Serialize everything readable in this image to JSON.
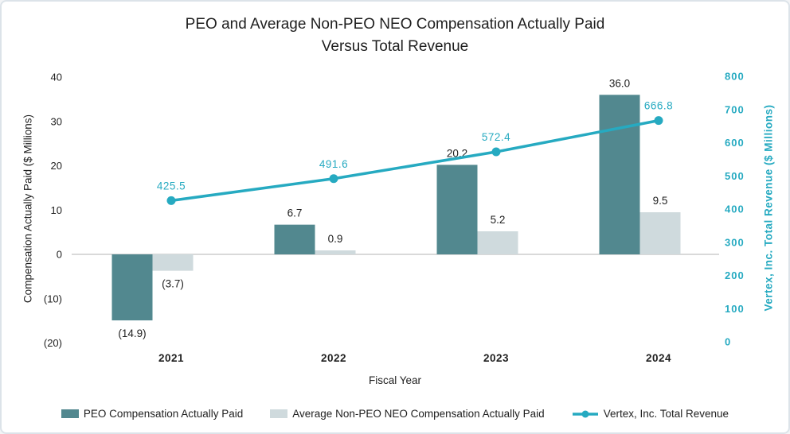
{
  "title": {
    "line1": "PEO and Average Non-PEO NEO Compensation Actually Paid",
    "line2": "Versus Total Revenue"
  },
  "chart_data": {
    "type": "combo-bar-line",
    "categories": [
      "2021",
      "2022",
      "2023",
      "2024"
    ],
    "series": [
      {
        "name": "PEO Compensation Actually Paid",
        "type": "bar",
        "axis": "left",
        "color": "#52888f",
        "values": [
          -14.9,
          6.7,
          20.2,
          36.0
        ],
        "labels": [
          "(14.9)",
          "6.7",
          "20.2",
          "36.0"
        ]
      },
      {
        "name": "Average Non-PEO NEO Compensation Actually Paid",
        "type": "bar",
        "axis": "left",
        "color": "#cfdadd",
        "values": [
          -3.7,
          0.9,
          5.2,
          9.5
        ],
        "labels": [
          "(3.7)",
          "0.9",
          "5.2",
          "9.5"
        ]
      },
      {
        "name": "Vertex, Inc. Total Revenue",
        "type": "line",
        "axis": "right",
        "color": "#26aac1",
        "values": [
          425.5,
          491.6,
          572.4,
          666.8
        ],
        "labels": [
          "425.5",
          "491.6",
          "572.4",
          "666.8"
        ]
      }
    ],
    "left_axis": {
      "title": "Compensation Actually Paid ($ Millions)",
      "min": -20,
      "max": 40,
      "tick_step": 10,
      "ticks": [
        {
          "v": 40,
          "label": "40"
        },
        {
          "v": 30,
          "label": "30"
        },
        {
          "v": 20,
          "label": "20"
        },
        {
          "v": 10,
          "label": "10"
        },
        {
          "v": 0,
          "label": "0"
        },
        {
          "v": -10,
          "label": "(10)"
        },
        {
          "v": -20,
          "label": "(20)"
        }
      ]
    },
    "right_axis": {
      "title": "Vertex, Inc. Total Revenue ($ Millions)",
      "min": 0,
      "max": 800,
      "tick_step": 100,
      "ticks": [
        {
          "v": 800,
          "label": "800"
        },
        {
          "v": 700,
          "label": "700"
        },
        {
          "v": 600,
          "label": "600"
        },
        {
          "v": 500,
          "label": "500"
        },
        {
          "v": 400,
          "label": "400"
        },
        {
          "v": 300,
          "label": "300"
        },
        {
          "v": 200,
          "label": "200"
        },
        {
          "v": 100,
          "label": "100"
        },
        {
          "v": 0,
          "label": "0"
        }
      ]
    },
    "x_axis": {
      "title": "Fiscal Year"
    },
    "grid": "zero-line-only",
    "legend_position": "bottom"
  },
  "colors": {
    "bar_peo": "#52888f",
    "bar_nonpeo": "#cfdadd",
    "line_revenue": "#26aac1",
    "right_axis_text": "#26aac1",
    "text": "#1f1f1f",
    "zero_line": "#d9d9d9",
    "card_border": "#dce3e9"
  }
}
